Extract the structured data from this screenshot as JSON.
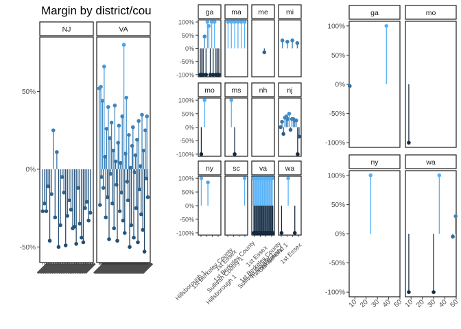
{
  "chart_data": [
    {
      "type": "scatter",
      "title": "Margin by district/cou",
      "xlabel": "",
      "ylabel": "",
      "ylim": [
        -0.6,
        0.85
      ],
      "yticks": [
        "-50%",
        "0%",
        "50%"
      ],
      "yticks_values": [
        -0.5,
        0,
        0.5
      ],
      "grid": false,
      "panels": [
        {
          "label": "NJ",
          "n": 28,
          "points": [
            -0.27,
            -0.22,
            -0.27,
            -0.11,
            -0.46,
            -0.16,
            0.25,
            -0.31,
            0.11,
            -0.5,
            -0.36,
            -0.05,
            -0.15,
            -0.49,
            -0.3,
            -0.2,
            -0.26,
            -0.38,
            -0.37,
            -0.48,
            -0.12,
            -0.35,
            -0.44,
            -0.47,
            -0.25,
            -0.21,
            -0.33,
            -0.28
          ]
        },
        {
          "label": "VA",
          "n": 60,
          "points": [
            0.52,
            -0.23,
            0.53,
            -0.05,
            0.44,
            -0.12,
            0.66,
            0.08,
            -0.31,
            0.26,
            -0.18,
            0.4,
            -0.45,
            0.2,
            -0.03,
            0.3,
            -0.22,
            0.12,
            -0.38,
            0.41,
            0.05,
            -0.1,
            -0.46,
            0.17,
            0.28,
            -0.27,
            0.04,
            -0.15,
            0.34,
            -0.33,
            0.8,
            -0.41,
            0.1,
            0.46,
            -0.08,
            -0.2,
            0.22,
            -0.5,
            0.01,
            -0.36,
            0.15,
            0.27,
            -0.44,
            -0.02,
            0.09,
            -0.25,
            0.19,
            -0.47,
            0.31,
            -0.13,
            0.02,
            -0.29,
            0.35,
            -0.39,
            0.12,
            -0.53,
            0.25,
            -0.06,
            0.34,
            -0.18
          ]
        }
      ]
    },
    {
      "type": "scatter",
      "title": "",
      "xlabel": "",
      "ylabel": "",
      "ylim": [
        -1.08,
        1.08
      ],
      "yticks": [
        "-100%",
        "-50%",
        "0%",
        "50%",
        "100%"
      ],
      "yticks_values": [
        -1,
        -0.5,
        0,
        0.5,
        1
      ],
      "grid": false,
      "panels": [
        {
          "label": "ga",
          "n": 14,
          "points": [
            -1,
            -1,
            -1,
            0.45,
            -1,
            1,
            0.85,
            -1,
            1,
            -1,
            1,
            -1,
            -1,
            -1
          ]
        },
        {
          "label": "ma",
          "n": 6,
          "points": [
            1,
            1,
            1,
            1,
            1,
            1
          ]
        },
        {
          "label": "me",
          "n": 8,
          "points": [
            null,
            null,
            null,
            null,
            -0.15,
            null,
            null,
            null
          ]
        },
        {
          "label": "mi",
          "n": 4,
          "points": [
            0.3,
            0.25,
            0.3,
            0.2
          ]
        },
        {
          "label": "mo",
          "n": 6,
          "points": [
            -1,
            1,
            null,
            null,
            null,
            null
          ]
        },
        {
          "label": "ms",
          "n": 6,
          "points": [
            null,
            1,
            -1,
            null,
            null,
            null
          ]
        },
        {
          "label": "nh",
          "n": 4,
          "points": [
            null,
            null,
            null,
            null
          ]
        },
        {
          "label": "nj",
          "n": 14,
          "points": [
            0,
            0.2,
            -0.25,
            0.35,
            0.4,
            0.3,
            0.5,
            -0.1,
            0.3,
            0.3,
            0.25,
            0.25,
            -1,
            -0.35
          ]
        },
        {
          "label": "ny",
          "n": 6,
          "points": [
            1,
            null,
            0.85,
            null,
            null,
            null
          ]
        },
        {
          "label": "sc",
          "n": 6,
          "points": [
            null,
            null,
            null,
            null,
            null,
            1
          ]
        },
        {
          "label": "va",
          "n": 40,
          "points": [
            1,
            -1,
            1,
            -1,
            1,
            -1,
            1,
            -1,
            1,
            -1,
            1,
            -1,
            1,
            -1,
            1,
            -1,
            1,
            -1,
            1,
            -1,
            1,
            -1,
            1,
            -1,
            1,
            -1,
            1,
            -1,
            1,
            -1,
            1,
            -1,
            1,
            -1,
            1,
            -1,
            1,
            -1,
            1,
            -1
          ]
        },
        {
          "label": "wa",
          "n": 6,
          "points": [
            -1,
            null,
            1,
            null,
            -1,
            null
          ]
        }
      ],
      "xtick_labels": [
        "1st Berkeley County",
        "1st Essex",
        "Hillsborough 1",
        "Sullivan County 1",
        "Trafford County",
        "Cumberland 1"
      ]
    },
    {
      "type": "scatter",
      "title": "",
      "xlabel": "",
      "ylabel": "",
      "xlim": [
        5,
        50
      ],
      "xticks": [
        10,
        20,
        30,
        40,
        50
      ],
      "ylim": [
        -1.08,
        1.08
      ],
      "yticks": [
        "-100%",
        "-50%",
        "0%",
        "50%",
        "100%"
      ],
      "yticks_values": [
        -1,
        -0.5,
        0,
        0.5,
        1
      ],
      "grid": false,
      "panels": [
        {
          "label": "ga",
          "points": [
            {
              "x": 5.5,
              "y": -0.03
            },
            {
              "x": 38,
              "y": 1.0
            }
          ]
        },
        {
          "label": "mo",
          "points": [
            {
              "x": 8,
              "y": -1.0
            }
          ]
        },
        {
          "label": "ny",
          "points": [
            {
              "x": 24,
              "y": 1.0
            }
          ]
        },
        {
          "label": "wa",
          "points": [
            {
              "x": 8,
              "y": -1.0
            },
            {
              "x": 30,
              "y": -1.0
            },
            {
              "x": 35,
              "y": 1.0
            },
            {
              "x": 47,
              "y": -0.05
            },
            {
              "x": 49.5,
              "y": 0.3
            }
          ]
        }
      ]
    }
  ]
}
